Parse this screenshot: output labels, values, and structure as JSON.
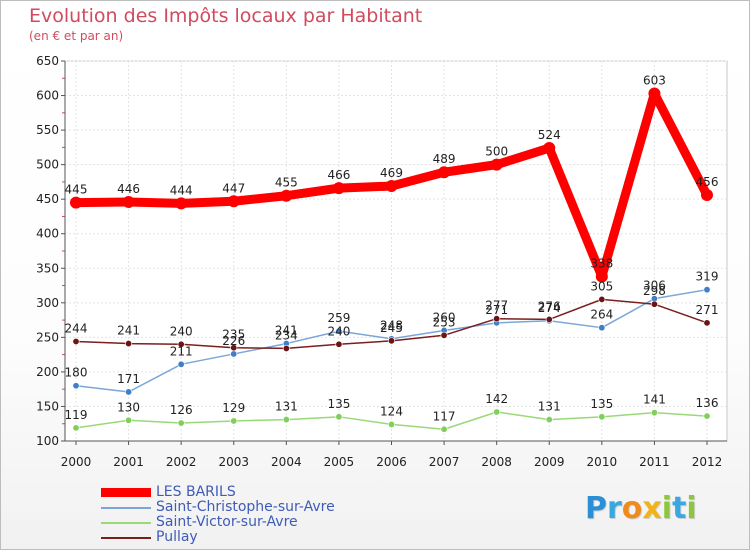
{
  "chart_data": {
    "type": "line",
    "title": "Evolution des Impôts locaux par Habitant",
    "subtitle": "(en € et par an)",
    "xlabel": "",
    "ylabel": "",
    "ylim": [
      100,
      650
    ],
    "yticks": [
      100,
      150,
      200,
      250,
      300,
      350,
      400,
      450,
      500,
      550,
      600,
      650
    ],
    "categories": [
      "2000",
      "2001",
      "2002",
      "2003",
      "2004",
      "2005",
      "2006",
      "2007",
      "2008",
      "2009",
      "2010",
      "2011",
      "2012"
    ],
    "grid": true,
    "legend_position": "bottom-left",
    "series": [
      {
        "name": "LES BARILS",
        "color": "#ff0000",
        "values": [
          445,
          446,
          444,
          447,
          455,
          466,
          469,
          489,
          500,
          524,
          338,
          603,
          456
        ]
      },
      {
        "name": "Saint-Christophe-sur-Avre",
        "color": "#7ba6d6",
        "marker_color": "#3f7fc7",
        "values": [
          180,
          171,
          211,
          226,
          241,
          259,
          248,
          260,
          271,
          274,
          264,
          306,
          319
        ]
      },
      {
        "name": "Saint-Victor-sur-Avre",
        "color": "#99d977",
        "marker_color": "#7fcf5a",
        "values": [
          119,
          130,
          126,
          129,
          131,
          135,
          124,
          117,
          142,
          131,
          135,
          141,
          136
        ]
      },
      {
        "name": "Pullay",
        "color": "#7a1e1e",
        "marker_color": "#6b1414",
        "values": [
          244,
          241,
          240,
          235,
          234,
          240,
          245,
          253,
          277,
          276,
          305,
          298,
          271
        ]
      }
    ]
  },
  "logo": {
    "letters": [
      "P",
      "r",
      "o",
      "x",
      "i",
      "t",
      "i"
    ],
    "colors": [
      "#2a8fd6",
      "#3aa7e0",
      "#ef8a1c",
      "#f0b318",
      "#8cc63f",
      "#3aa7e0",
      "#8cc63f"
    ]
  }
}
